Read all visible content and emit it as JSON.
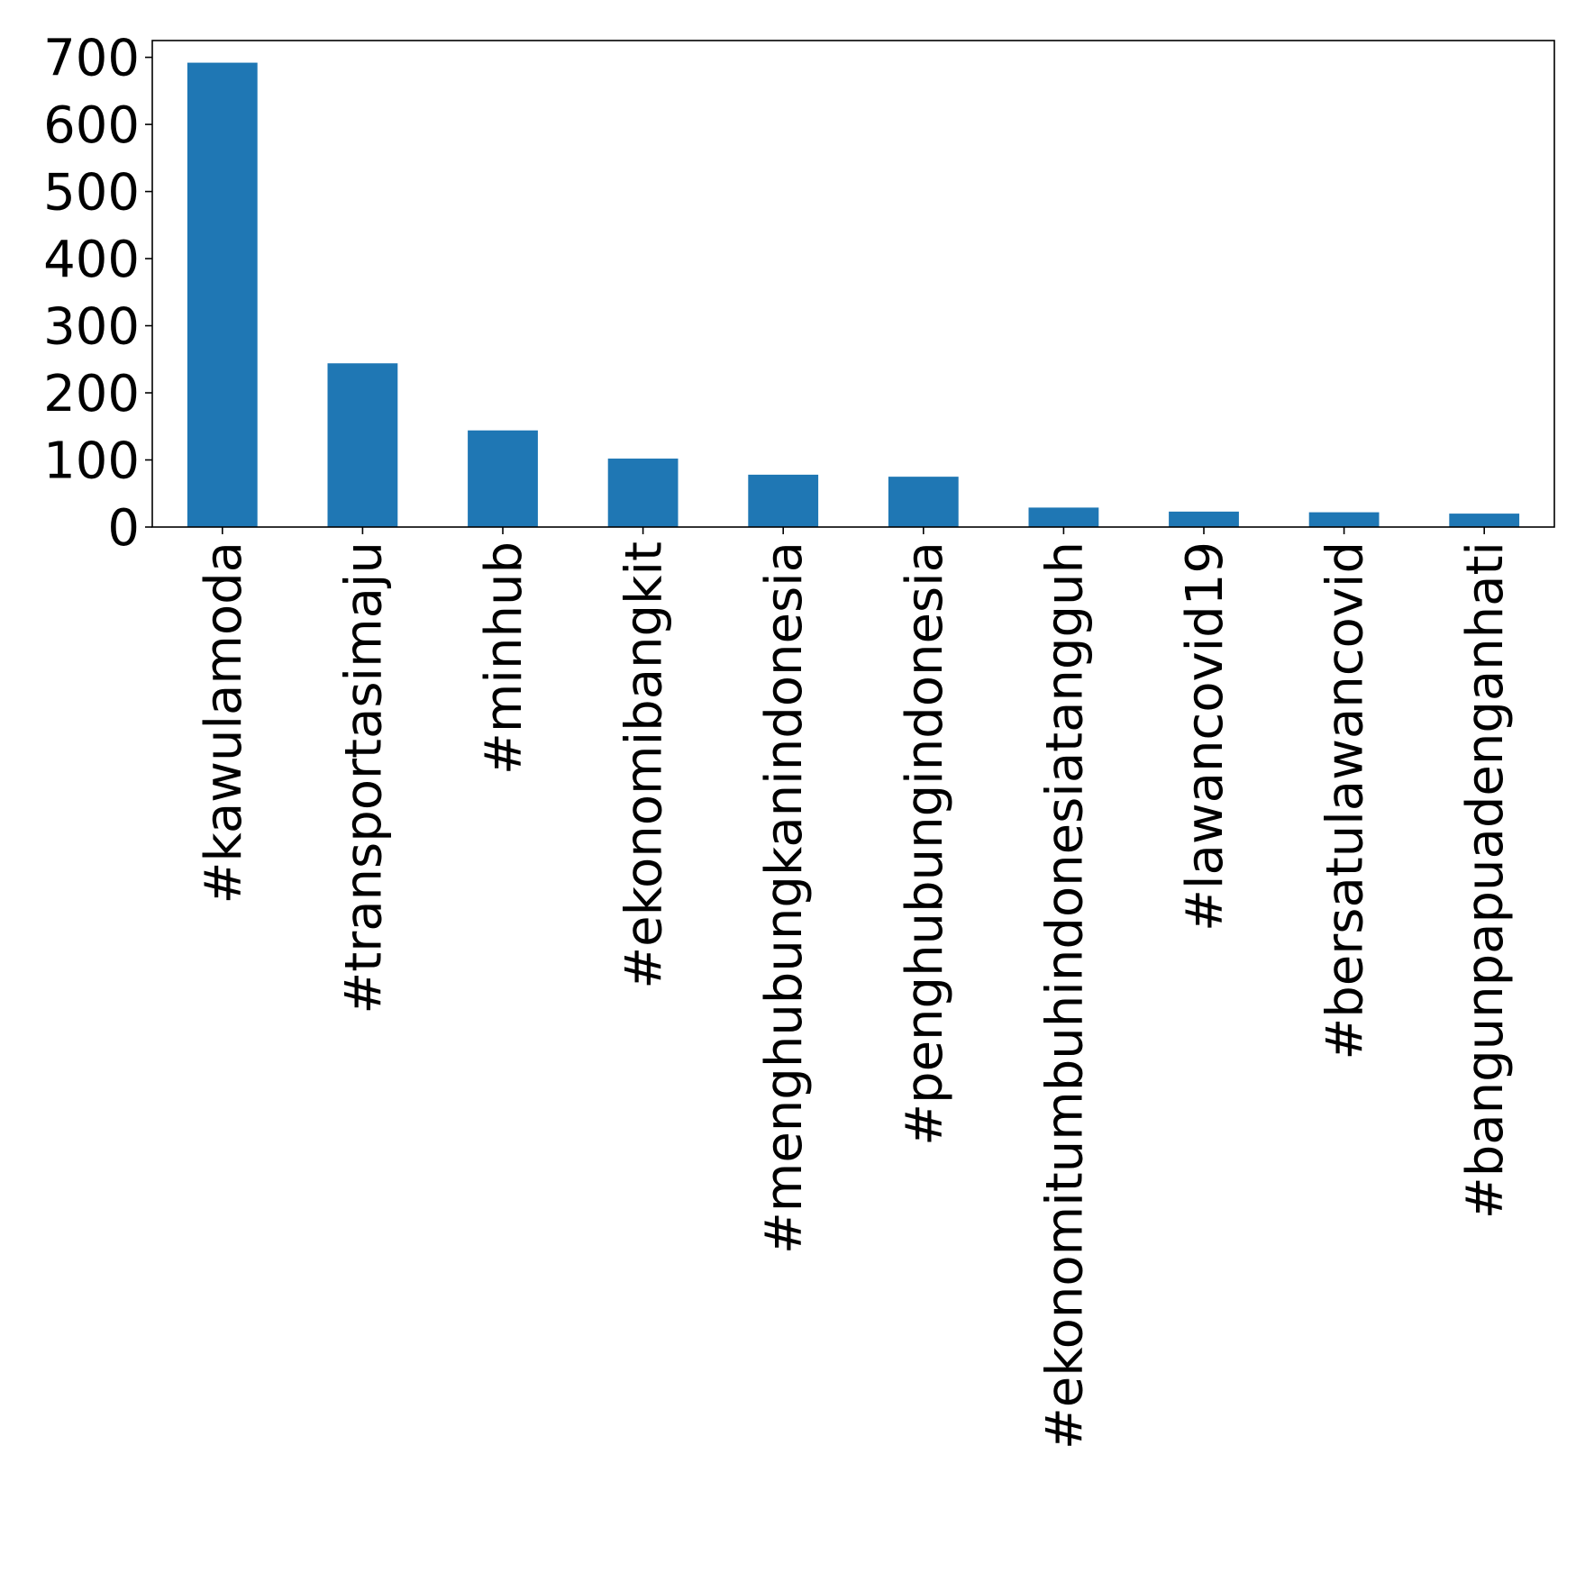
{
  "chart_data": {
    "type": "bar",
    "title": "",
    "xlabel": "",
    "ylabel": "",
    "categories": [
      "#kawulamoda",
      "#transportasimaju",
      "#minhub",
      "#ekonomibangkit",
      "#menghubungkanindonesia",
      "#penghubungindonesia",
      "#ekonomitumbuhindonesiatangguh",
      "#lawancovid19",
      "#bersatulawancovid",
      "#bangunpapuadenganhati"
    ],
    "values": [
      692,
      244,
      144,
      102,
      78,
      75,
      29,
      23,
      22,
      20
    ],
    "ylim": [
      0,
      725
    ],
    "yticks": [
      0,
      100,
      200,
      300,
      400,
      500,
      600,
      700
    ],
    "ytick_labels": [
      "0",
      "100",
      "200",
      "300",
      "400",
      "500",
      "600",
      "700"
    ],
    "bar_color": "#1f77b4",
    "grid": false,
    "legend": "none"
  }
}
